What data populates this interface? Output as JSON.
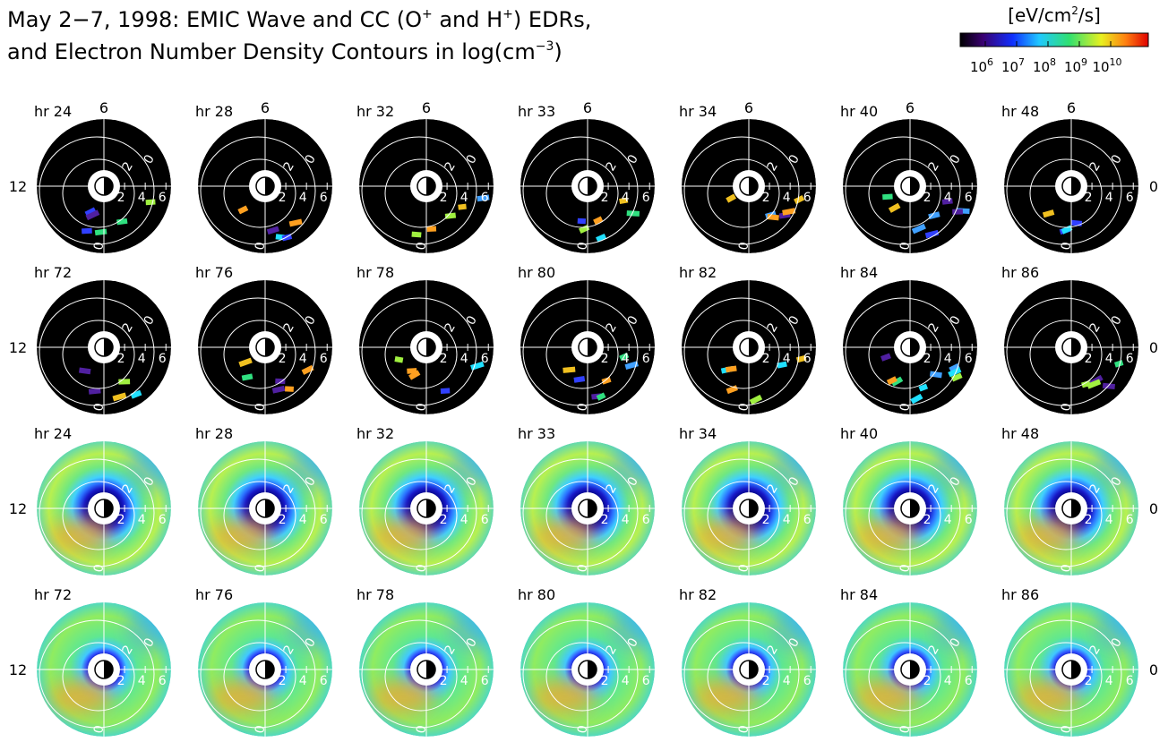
{
  "title": [
    [
      "May 2−7, 1998: EMIC Wave and CC (O",
      "+",
      " and H",
      "+",
      ") EDRs,"
    ],
    [
      "and Electron Number Density Contours in log(cm",
      "−3",
      ")"
    ]
  ],
  "colorbar": {
    "label": [
      "[eV/cm",
      "2",
      "/s]"
    ],
    "base": "10",
    "ticks": [
      6,
      7,
      8,
      9,
      10
    ],
    "lim": [
      5.2,
      11.2
    ]
  },
  "panels": {
    "rows": [
      {
        "labels": [
          "hr 24",
          "hr 28",
          "hr 32",
          "hr 33",
          "hr 34",
          "hr 40",
          "hr 48"
        ]
      },
      {
        "labels": [
          "hr 72",
          "hr 76",
          "hr 78",
          "hr 80",
          "hr 82",
          "hr 84",
          "hr 86"
        ]
      },
      {
        "labels": [
          "hr 24",
          "hr 28",
          "hr 32",
          "hr 33",
          "hr 34",
          "hr 40",
          "hr 48"
        ]
      },
      {
        "labels": [
          "hr 72",
          "hr 76",
          "hr 78",
          "hr 80",
          "hr 82",
          "hr 84",
          "hr 86"
        ]
      }
    ],
    "top_label": "6",
    "left_label": "12",
    "right_label": "0",
    "radial_ticks": [
      2,
      4,
      6
    ],
    "rlim": [
      0,
      6.5
    ],
    "contour_labels": [
      "0",
      "2"
    ]
  }
}
